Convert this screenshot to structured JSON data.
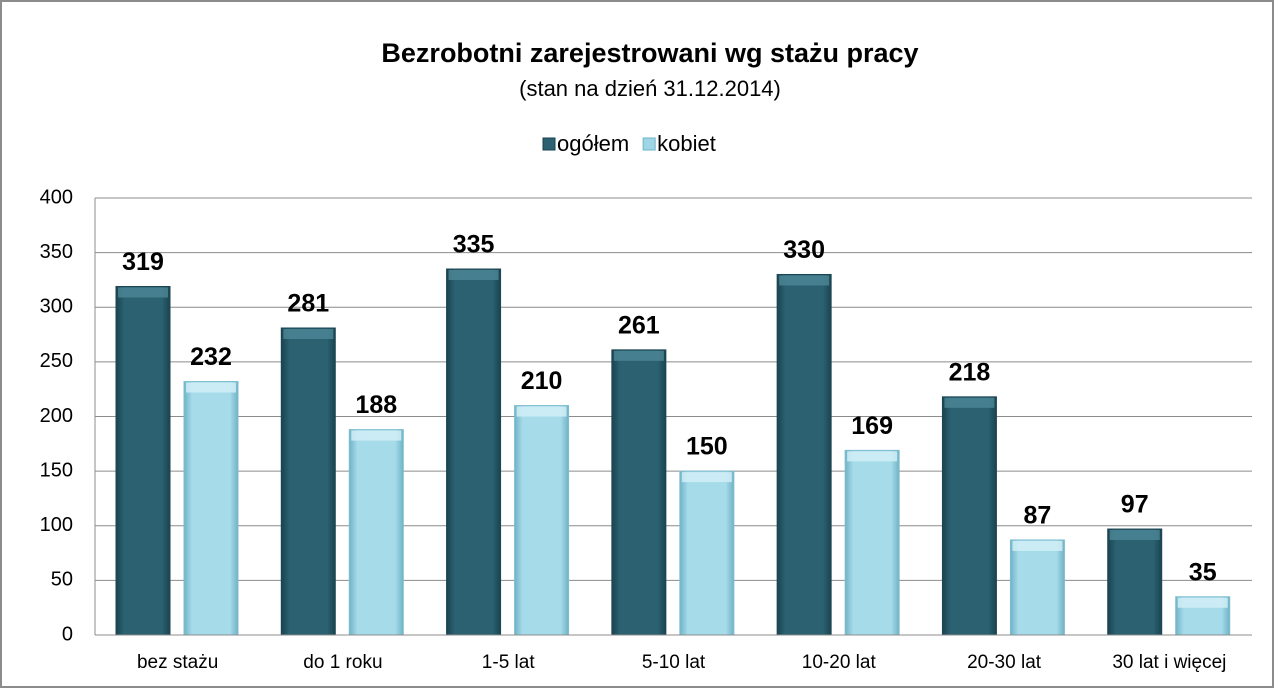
{
  "chart_data": {
    "type": "bar",
    "title": "Bezrobotni zarejestrowani wg stażu pracy",
    "subtitle": "(stan na dzień 31.12.2014)",
    "categories": [
      "bez stażu",
      "do 1 roku",
      "1-5 lat",
      "5-10 lat",
      "10-20 lat",
      "20-30 lat",
      "30 lat i więcej"
    ],
    "series": [
      {
        "name": "ogółem",
        "color": "#2b6171",
        "values": [
          319,
          281,
          335,
          261,
          330,
          218,
          97
        ]
      },
      {
        "name": "kobiet",
        "color": "#9fd5e5",
        "values": [
          232,
          188,
          210,
          150,
          169,
          87,
          35
        ]
      }
    ],
    "ylim": [
      0,
      400
    ],
    "yticks": [
      0,
      50,
      100,
      150,
      200,
      250,
      300,
      350,
      400
    ],
    "grid": true,
    "legend": "top"
  }
}
